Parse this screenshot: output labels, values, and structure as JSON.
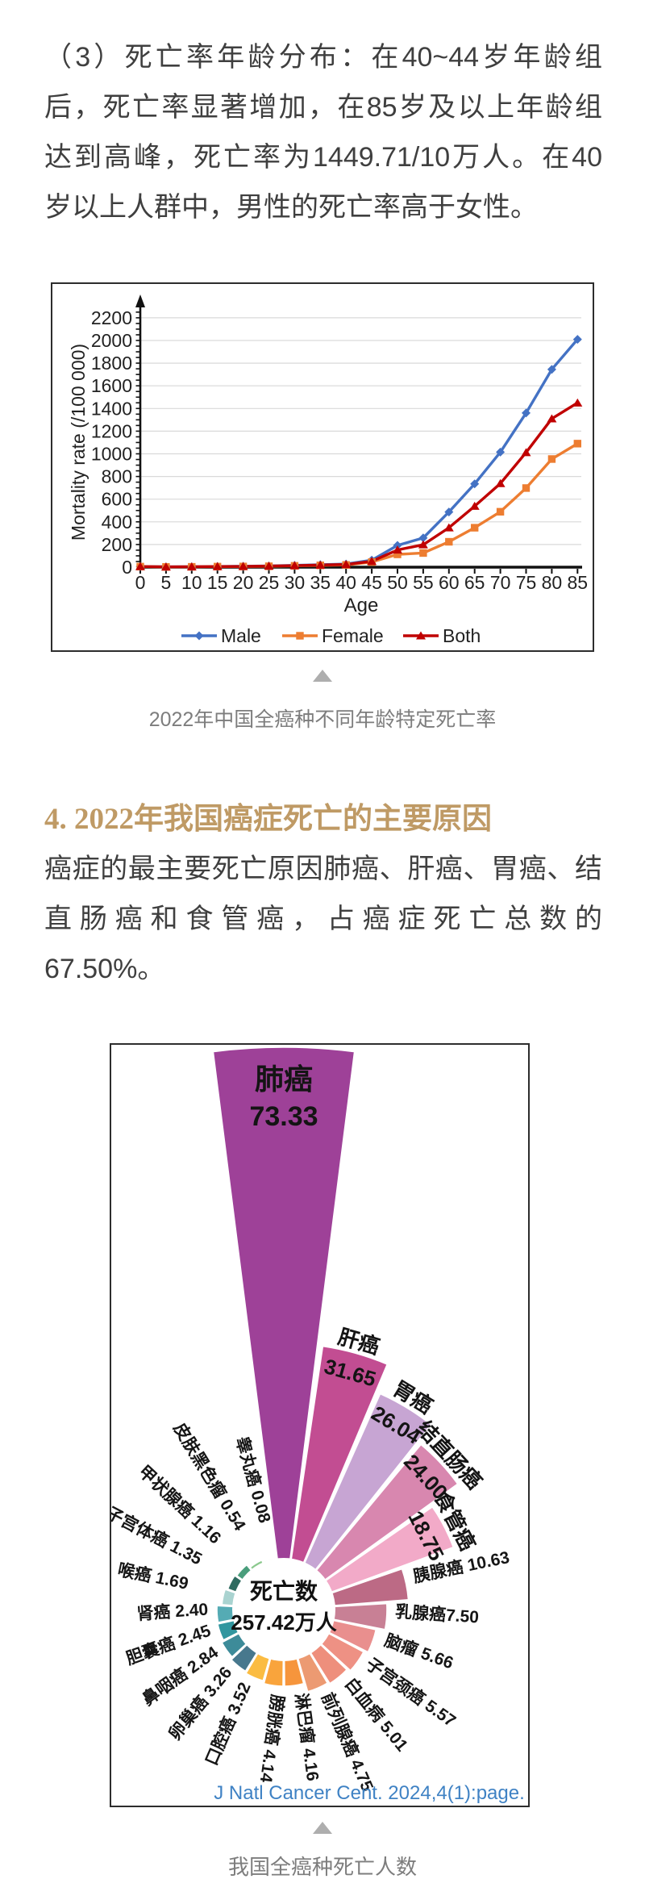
{
  "intro_paragraph": {
    "lines": [
      "（3）死亡率年龄分布：在40~44岁年龄组",
      "后，死亡率显著增加，在85岁及以上年龄组",
      "达到高峰，死亡率为1449.71/10万人。在40",
      "岁以上人群中，男性的死亡率高于女性。"
    ]
  },
  "section": {
    "heading": "4. 2022年我国癌症死亡的主要原因",
    "accent_color": "#bf9a65"
  },
  "cause_paragraph": {
    "lines": [
      "癌症的最主要死亡原因肺癌、肝癌、胃癌、结",
      "直肠癌和食管癌，占癌症死亡总数的",
      "67.50%。"
    ]
  },
  "chart_data": [
    {
      "type": "line",
      "xlabel": "Age",
      "ylabel": "Mortality rate (/100 000)",
      "x": [
        0,
        5,
        10,
        15,
        20,
        25,
        30,
        35,
        40,
        45,
        50,
        55,
        60,
        65,
        70,
        75,
        80,
        85
      ],
      "ylim": [
        0,
        2300
      ],
      "yticks": [
        0,
        200,
        400,
        600,
        800,
        1000,
        1200,
        1400,
        1600,
        1800,
        2000,
        2200
      ],
      "grid": true,
      "legend_position": "bottom",
      "series": [
        {
          "name": "Male",
          "color": "#4472c4",
          "marker": "diamond",
          "values": [
            6,
            3,
            4,
            6,
            8,
            11,
            16,
            22,
            28,
            62,
            192,
            258,
            487,
            735,
            1015,
            1360,
            1745,
            2010
          ]
        },
        {
          "name": "Female",
          "color": "#ed7d31",
          "marker": "square",
          "values": [
            5,
            2,
            3,
            5,
            6,
            8,
            12,
            16,
            20,
            45,
            113,
            125,
            224,
            348,
            489,
            698,
            954,
            1090
          ]
        },
        {
          "name": "Both",
          "color": "#c00000",
          "marker": "triangle",
          "values": [
            6,
            3,
            4,
            6,
            7,
            10,
            14,
            19,
            24,
            52,
            152,
            198,
            348,
            538,
            738,
            1012,
            1310,
            1449.71
          ]
        }
      ],
      "caption": "2022年中国全癌种不同年龄特定死亡率"
    },
    {
      "type": "pie",
      "variant": "nightingale-rose",
      "title": "",
      "center_label": {
        "title": "死亡数",
        "value": "257.42万人"
      },
      "unit": "万人",
      "slices": [
        {
          "name": "肺癌",
          "value": 73.33,
          "text": "肺癌",
          "value_label": "73.33",
          "color": "#9e4198"
        },
        {
          "name": "肝癌",
          "value": 31.65,
          "text": "肝癌",
          "value_label": "31.65",
          "color": "#c24d92"
        },
        {
          "name": "胃癌",
          "value": 26.04,
          "text": "胃癌",
          "value_label": "26.04",
          "color": "#c7a5d3"
        },
        {
          "name": "结直肠癌",
          "value": 24.0,
          "text": "结直肠癌",
          "value_label": "24.00",
          "color": "#d887af"
        },
        {
          "name": "食管癌",
          "value": 18.75,
          "text": "食管癌",
          "value_label": "18.75",
          "color": "#f2aac8"
        },
        {
          "name": "胰腺癌",
          "value": 10.63,
          "text": "胰腺癌 10.63",
          "value_label": "10.63",
          "color": "#bc6a85"
        },
        {
          "name": "乳腺癌",
          "value": 7.5,
          "text": "乳腺癌7.50",
          "value_label": "7.50",
          "color": "#c88095"
        },
        {
          "name": "脑瘤",
          "value": 5.66,
          "text": "脑瘤  5.66",
          "value_label": "5.66",
          "color": "#e98f8e"
        },
        {
          "name": "子宫颈癌",
          "value": 5.57,
          "text": "子宫颈癌 5.57",
          "value_label": "5.57",
          "color": "#ee9184"
        },
        {
          "name": "白血病",
          "value": 5.01,
          "text": "白血病 5.01",
          "value_label": "5.01",
          "color": "#ee8f7c"
        },
        {
          "name": "前列腺癌",
          "value": 4.75,
          "text": "前列腺癌 4.75",
          "value_label": "4.75",
          "color": "#ec9a72"
        },
        {
          "name": "淋巴瘤",
          "value": 4.16,
          "text": "淋巴瘤 4.16",
          "value_label": "4.16",
          "color": "#f6953c"
        },
        {
          "name": "膀胱癌",
          "value": 4.14,
          "text": "膀胱癌 4.14",
          "value_label": "4.14",
          "color": "#f9a43c"
        },
        {
          "name": "口腔癌",
          "value": 3.52,
          "text": "口腔癌 3.52",
          "value_label": "3.52",
          "color": "#fbbc42"
        },
        {
          "name": "卵巢癌",
          "value": 3.26,
          "text": "卵巢癌 3.26",
          "value_label": "3.26",
          "color": "#47788d"
        },
        {
          "name": "鼻咽癌",
          "value": 2.84,
          "text": "鼻咽癌 2.84",
          "value_label": "2.84",
          "color": "#3d8b99"
        },
        {
          "name": "胆囊癌",
          "value": 2.45,
          "text": "胆囊癌 2.45",
          "value_label": "2.45",
          "color": "#31969f"
        },
        {
          "name": "肾癌",
          "value": 2.4,
          "text": "肾癌 2.40",
          "value_label": "2.40",
          "color": "#55abb4"
        },
        {
          "name": "喉癌",
          "value": 1.69,
          "text": "喉癌 1.69",
          "value_label": "1.69",
          "color": "#a9d3d0"
        },
        {
          "name": "子宫体癌",
          "value": 1.35,
          "text": "子宫体癌 1.35",
          "value_label": "1.35",
          "color": "#2e6b60"
        },
        {
          "name": "甲状腺癌",
          "value": 1.16,
          "text": "甲状腺癌 1.16",
          "value_label": "1.16",
          "color": "#4a9e7c"
        },
        {
          "name": "皮肤黑色瘤",
          "value": 0.54,
          "text": "皮肤黑色瘤 0.54",
          "value_label": "0.54",
          "color": "#8cc98e"
        },
        {
          "name": "睾丸癌",
          "value": 0.08,
          "text": "睾丸癌 0.08",
          "value_label": "0.08",
          "color": "#5cb75f"
        }
      ],
      "source": "J Natl Cancer Cent. 2024,4(1):page.",
      "source_color": "#3f82c4",
      "caption": "我国全癌种死亡人数"
    }
  ]
}
